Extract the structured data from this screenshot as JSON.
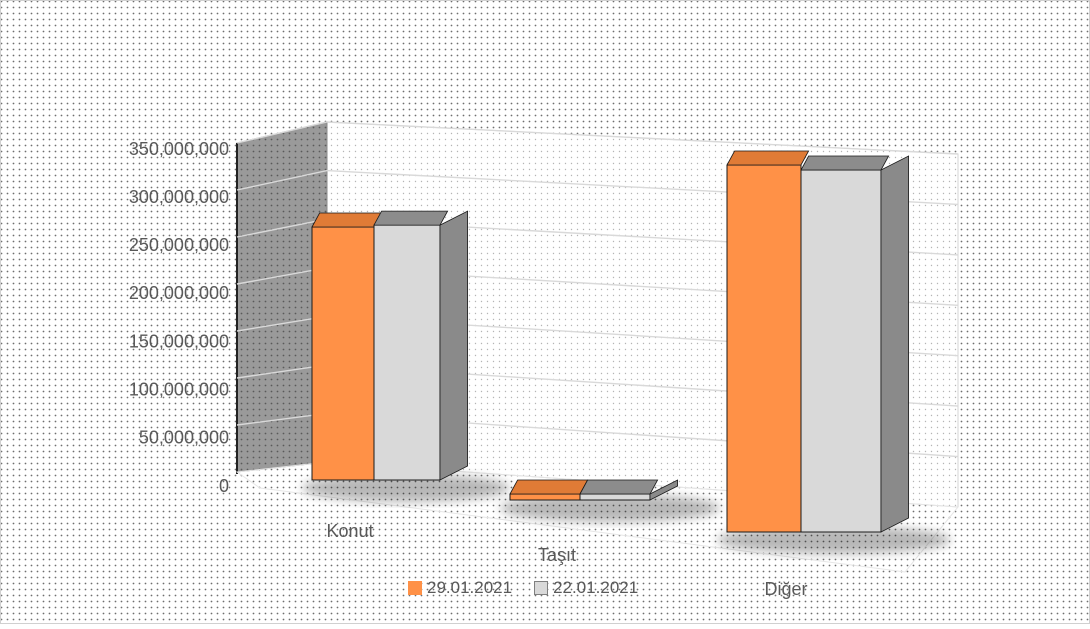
{
  "chart_data": {
    "type": "bar",
    "subtype": "3d-clustered-column",
    "title": "",
    "xlabel": "",
    "ylabel": "",
    "categories": [
      "Konut",
      "Taşıt",
      "Diğer"
    ],
    "series": [
      {
        "name": "29.01.2021",
        "color": "#ff9147",
        "values": [
          262000000,
          1500000,
          367000000
        ]
      },
      {
        "name": "22.01.2021",
        "color": "#d9d9d9",
        "values": [
          264000000,
          1500000,
          362000000
        ]
      }
    ],
    "yticks": [
      0,
      50000000,
      100000000,
      150000000,
      200000000,
      250000000,
      300000000,
      350000000
    ],
    "ytick_labels": [
      "0",
      "50,000,000",
      "100,000,000",
      "150,000,000",
      "200,000,000",
      "250,000,000",
      "300,000,000",
      "350,000,000"
    ],
    "ylim": [
      0,
      350000000
    ],
    "grid": true,
    "legend_position": "bottom",
    "background": "dotted"
  }
}
